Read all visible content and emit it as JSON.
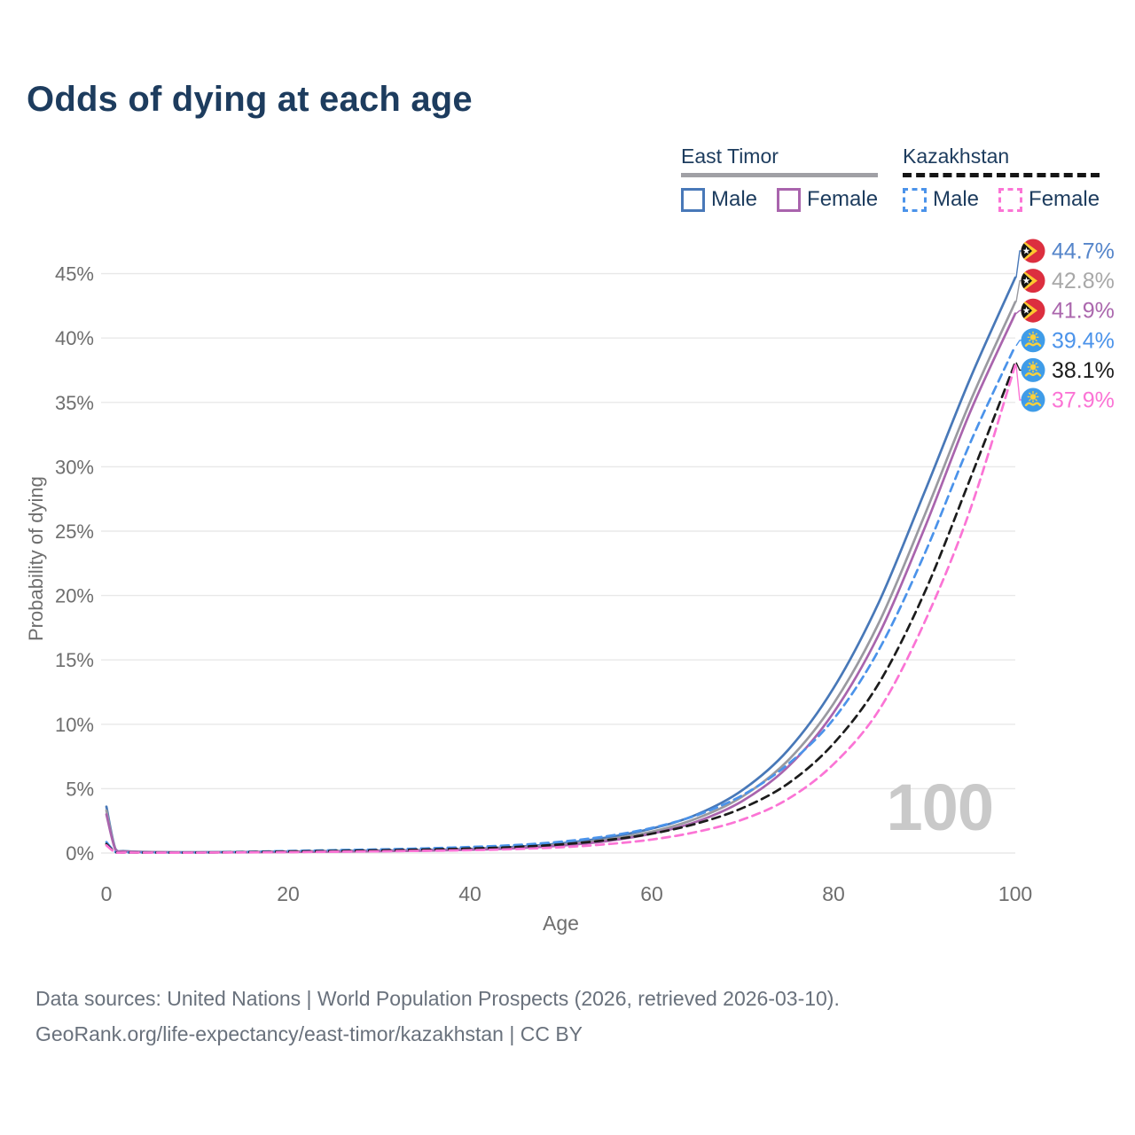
{
  "page": {
    "title": "Odds of dying at each age"
  },
  "legend": {
    "groups": [
      {
        "title": "East Timor",
        "line_style": "solid",
        "underline_color": "#a0a0a5",
        "items": [
          {
            "label": "Male",
            "color": "#4878b8"
          },
          {
            "label": "Female",
            "color": "#a964ad"
          }
        ]
      },
      {
        "title": "Kazakhstan",
        "line_style": "dashed",
        "underline_color": "#151515",
        "items": [
          {
            "label": "Male",
            "color": "#4b93ea"
          },
          {
            "label": "Female",
            "color": "#fb74d5"
          }
        ]
      }
    ]
  },
  "chart_data": {
    "type": "line",
    "title": "Odds of dying at each age",
    "xlabel": "Age",
    "ylabel": "Probability of dying",
    "x_ticks": [
      0,
      20,
      40,
      60,
      80,
      100
    ],
    "y_ticks_pct": [
      0,
      5,
      10,
      15,
      20,
      25,
      30,
      35,
      40,
      45
    ],
    "xlim": [
      0,
      100
    ],
    "ylim_pct": [
      0,
      47
    ],
    "grid": "horizontal",
    "gridline_color": "#e8e8e8",
    "x": [
      0,
      1,
      2,
      5,
      10,
      15,
      20,
      25,
      30,
      35,
      40,
      45,
      50,
      55,
      60,
      65,
      70,
      75,
      80,
      85,
      90,
      95,
      100
    ],
    "series": [
      {
        "id": "east-timor-male",
        "name": "East Timor Male",
        "country": "East Timor",
        "sex": "Male",
        "flag": "east-timor",
        "dashed": false,
        "color": "#4878b8",
        "label_color": "#5585ca",
        "end_label": "44.7%",
        "values_pct": [
          3.6,
          0.3,
          0.15,
          0.08,
          0.06,
          0.08,
          0.12,
          0.15,
          0.18,
          0.23,
          0.32,
          0.48,
          0.75,
          1.2,
          1.9,
          3.0,
          4.9,
          8.0,
          12.8,
          19.5,
          28.0,
          36.8,
          44.7
        ]
      },
      {
        "id": "east-timor-both",
        "name": "East Timor",
        "country": "East Timor",
        "sex": "Both",
        "flag": "east-timor",
        "dashed": false,
        "color": "#9a9aa0",
        "label_color": "#a8a8a8",
        "end_label": "42.8%",
        "values_pct": [
          3.3,
          0.27,
          0.13,
          0.07,
          0.055,
          0.07,
          0.1,
          0.13,
          0.16,
          0.2,
          0.28,
          0.42,
          0.66,
          1.05,
          1.65,
          2.7,
          4.4,
          7.2,
          11.6,
          17.9,
          26.2,
          35.0,
          42.8
        ]
      },
      {
        "id": "east-timor-female",
        "name": "East Timor Female",
        "country": "East Timor",
        "sex": "Female",
        "flag": "east-timor",
        "dashed": false,
        "color": "#a964ad",
        "label_color": "#ab67ad",
        "end_label": "41.9%",
        "values_pct": [
          3.0,
          0.24,
          0.12,
          0.06,
          0.05,
          0.06,
          0.08,
          0.11,
          0.14,
          0.18,
          0.25,
          0.37,
          0.58,
          0.92,
          1.5,
          2.45,
          4.05,
          6.7,
          10.9,
          17.0,
          25.2,
          34.2,
          41.9
        ]
      },
      {
        "id": "kazakhstan-male",
        "name": "Kazakhstan Male",
        "country": "Kazakhstan",
        "sex": "Male",
        "flag": "kazakhstan",
        "dashed": true,
        "color": "#4b93ea",
        "label_color": "#4b93ea",
        "end_label": "39.4%",
        "values_pct": [
          0.85,
          0.07,
          0.05,
          0.04,
          0.04,
          0.09,
          0.16,
          0.22,
          0.28,
          0.36,
          0.47,
          0.62,
          0.88,
          1.3,
          1.95,
          2.95,
          4.5,
          6.9,
          10.4,
          15.8,
          23.2,
          31.8,
          39.4
        ]
      },
      {
        "id": "kazakhstan-both",
        "name": "Kazakhstan",
        "country": "Kazakhstan",
        "sex": "Both",
        "flag": "kazakhstan",
        "dashed": true,
        "color": "#1c1c1c",
        "label_color": "#1c1c1c",
        "end_label": "38.1%",
        "values_pct": [
          0.7,
          0.06,
          0.04,
          0.033,
          0.033,
          0.07,
          0.12,
          0.16,
          0.21,
          0.27,
          0.35,
          0.47,
          0.67,
          1.0,
          1.5,
          2.3,
          3.5,
          5.4,
          8.5,
          13.2,
          20.2,
          29.0,
          38.1
        ]
      },
      {
        "id": "kazakhstan-female",
        "name": "Kazakhstan Female",
        "country": "Kazakhstan",
        "sex": "Female",
        "flag": "kazakhstan",
        "dashed": true,
        "color": "#fb74d5",
        "label_color": "#fb74d5",
        "end_label": "37.9%",
        "values_pct": [
          0.6,
          0.05,
          0.035,
          0.028,
          0.028,
          0.05,
          0.07,
          0.1,
          0.13,
          0.17,
          0.22,
          0.31,
          0.45,
          0.68,
          1.05,
          1.65,
          2.6,
          4.2,
          6.9,
          11.1,
          17.9,
          26.6,
          37.9
        ]
      }
    ]
  },
  "watermark": {
    "text": "100"
  },
  "footer": {
    "line1": "Data sources: United Nations | World Population Prospects (2026, retrieved 2026-03-10).",
    "line2": "GeoRank.org/life-expectancy/east-timor/kazakhstan | CC BY"
  }
}
